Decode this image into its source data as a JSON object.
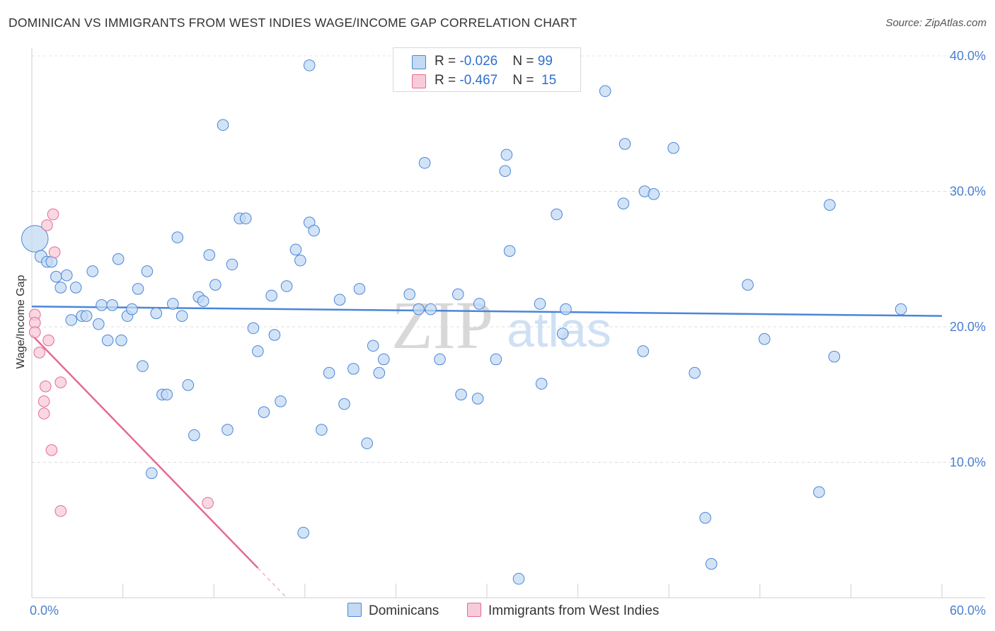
{
  "header": {
    "title": "DOMINICAN VS IMMIGRANTS FROM WEST INDIES WAGE/INCOME GAP CORRELATION CHART",
    "source": "Source: ZipAtlas.com"
  },
  "watermark": {
    "zip": "ZIP",
    "atlas": "atlas"
  },
  "legend": {
    "rows": [
      {
        "r_label": "R = ",
        "r_value": "-0.026",
        "n_label": "N = ",
        "n_value": "99",
        "color": "#aac8f0"
      },
      {
        "r_label": "R = ",
        "r_value": "-0.467",
        "n_label": "N = ",
        "n_value": "15",
        "color": "#f4b8c8"
      }
    ]
  },
  "bottom_legend": {
    "series1": "Dominicans",
    "series2": "Immigrants from West Indies"
  },
  "chart_data": {
    "type": "scatter",
    "title": "DOMINICAN VS IMMIGRANTS FROM WEST INDIES WAGE/INCOME GAP CORRELATION CHART",
    "xlabel": "",
    "ylabel": "Wage/Income Gap",
    "xlim": [
      0,
      60
    ],
    "ylim": [
      0,
      40
    ],
    "x_tick_labels": [
      "0.0%",
      "60.0%"
    ],
    "y_ticks": [
      10,
      20,
      30,
      40
    ],
    "y_tick_labels": [
      "10.0%",
      "20.0%",
      "30.0%",
      "40.0%"
    ],
    "grid": true,
    "colors": {
      "blue": "#4a86d8",
      "blue_fill": "#c4d9f3",
      "pink": "#e46b94",
      "pink_fill": "#f7cbd8",
      "label": "#4a7fd0"
    },
    "series": [
      {
        "name": "Dominicans",
        "R": -0.026,
        "N": 99,
        "trend": {
          "x": [
            0,
            60
          ],
          "y": [
            21.5,
            20.8
          ]
        },
        "points": [
          [
            0.2,
            26.5,
            24
          ],
          [
            0.6,
            25.2,
            11
          ],
          [
            1.0,
            24.8,
            10
          ],
          [
            1.3,
            24.8,
            10
          ],
          [
            1.6,
            23.7,
            10
          ],
          [
            1.9,
            22.9,
            10
          ],
          [
            2.3,
            23.8,
            10
          ],
          [
            2.9,
            22.9,
            10
          ],
          [
            2.6,
            20.5,
            10
          ],
          [
            3.3,
            20.8,
            10
          ],
          [
            3.6,
            20.8,
            10
          ],
          [
            4.0,
            24.1,
            10
          ],
          [
            4.4,
            20.2,
            10
          ],
          [
            4.6,
            21.6,
            10
          ],
          [
            5.0,
            19.0,
            10
          ],
          [
            5.3,
            21.6,
            10
          ],
          [
            5.7,
            25.0,
            10
          ],
          [
            5.9,
            19.0,
            10
          ],
          [
            6.3,
            20.8,
            10
          ],
          [
            6.6,
            21.3,
            10
          ],
          [
            7.0,
            22.8,
            10
          ],
          [
            7.3,
            17.1,
            10
          ],
          [
            7.6,
            24.1,
            10
          ],
          [
            7.9,
            9.2,
            10
          ],
          [
            8.2,
            21.0,
            10
          ],
          [
            8.6,
            15.0,
            10
          ],
          [
            8.9,
            15.0,
            10
          ],
          [
            9.3,
            21.7,
            10
          ],
          [
            9.6,
            26.6,
            10
          ],
          [
            9.9,
            20.8,
            10
          ],
          [
            10.3,
            15.7,
            10
          ],
          [
            10.7,
            12.0,
            10
          ],
          [
            11.0,
            22.2,
            10
          ],
          [
            11.3,
            21.9,
            10
          ],
          [
            11.7,
            25.3,
            10
          ],
          [
            12.1,
            23.1,
            10
          ],
          [
            12.6,
            34.9,
            10
          ],
          [
            12.9,
            12.4,
            10
          ],
          [
            13.2,
            24.6,
            10
          ],
          [
            13.7,
            28.0,
            10
          ],
          [
            14.1,
            28.0,
            10
          ],
          [
            14.6,
            19.9,
            10
          ],
          [
            14.9,
            18.2,
            10
          ],
          [
            15.3,
            13.7,
            10
          ],
          [
            15.8,
            22.3,
            10
          ],
          [
            16.0,
            19.4,
            10
          ],
          [
            16.4,
            14.5,
            10
          ],
          [
            16.8,
            23.0,
            10
          ],
          [
            17.4,
            25.7,
            10
          ],
          [
            17.7,
            24.9,
            10
          ],
          [
            17.9,
            4.8,
            10
          ],
          [
            18.3,
            27.7,
            10
          ],
          [
            18.6,
            27.1,
            10
          ],
          [
            18.3,
            39.3,
            10
          ],
          [
            19.1,
            12.4,
            10
          ],
          [
            19.6,
            16.6,
            10
          ],
          [
            20.3,
            22.0,
            10
          ],
          [
            20.6,
            14.3,
            10
          ],
          [
            21.2,
            16.9,
            10
          ],
          [
            21.6,
            22.8,
            10
          ],
          [
            22.1,
            11.4,
            10
          ],
          [
            22.5,
            18.6,
            10
          ],
          [
            22.9,
            16.6,
            10
          ],
          [
            23.2,
            17.6,
            10
          ],
          [
            24.9,
            22.4,
            10
          ],
          [
            25.5,
            21.3,
            10
          ],
          [
            26.3,
            21.3,
            10
          ],
          [
            25.9,
            32.1,
            10
          ],
          [
            26.9,
            17.6,
            10
          ],
          [
            28.1,
            22.4,
            10
          ],
          [
            28.3,
            15.0,
            10
          ],
          [
            29.4,
            14.7,
            10
          ],
          [
            29.5,
            21.7,
            10
          ],
          [
            30.6,
            17.6,
            10
          ],
          [
            31.2,
            31.5,
            10
          ],
          [
            31.3,
            32.7,
            10
          ],
          [
            31.5,
            25.6,
            10
          ],
          [
            32.1,
            1.4,
            10
          ],
          [
            33.5,
            21.7,
            10
          ],
          [
            33.6,
            15.8,
            10
          ],
          [
            34.6,
            28.3,
            10
          ],
          [
            35.0,
            19.5,
            10
          ],
          [
            35.2,
            21.3,
            10
          ],
          [
            37.8,
            37.4,
            10
          ],
          [
            39.0,
            29.1,
            10
          ],
          [
            39.1,
            33.5,
            10
          ],
          [
            40.3,
            18.2,
            10
          ],
          [
            40.4,
            30.0,
            10
          ],
          [
            41.0,
            29.8,
            10
          ],
          [
            42.3,
            33.2,
            10
          ],
          [
            43.7,
            16.6,
            10
          ],
          [
            44.4,
            5.9,
            10
          ],
          [
            44.8,
            2.5,
            10
          ],
          [
            47.2,
            23.1,
            10
          ],
          [
            48.3,
            19.1,
            10
          ],
          [
            51.9,
            7.8,
            10
          ],
          [
            52.6,
            29.0,
            10
          ],
          [
            52.9,
            17.8,
            10
          ],
          [
            57.3,
            21.3,
            10
          ]
        ]
      },
      {
        "name": "Immigrants from West Indies",
        "R": -0.467,
        "N": 15,
        "trend": {
          "x": [
            0,
            14.9
          ],
          "y": [
            19.4,
            2.2
          ]
        },
        "trend_dashed": {
          "x": [
            14.9,
            16.8
          ],
          "y": [
            2.2,
            0
          ]
        },
        "points": [
          [
            0.2,
            20.9,
            10
          ],
          [
            0.2,
            20.3,
            10
          ],
          [
            0.2,
            19.6,
            10
          ],
          [
            0.5,
            18.1,
            10
          ],
          [
            0.8,
            14.5,
            10
          ],
          [
            0.8,
            13.6,
            10
          ],
          [
            0.9,
            15.6,
            10
          ],
          [
            1.0,
            27.5,
            10
          ],
          [
            1.1,
            19.0,
            10
          ],
          [
            1.3,
            10.9,
            10
          ],
          [
            1.4,
            28.3,
            10
          ],
          [
            1.5,
            25.5,
            10
          ],
          [
            1.9,
            15.9,
            10
          ],
          [
            1.9,
            6.4,
            10
          ],
          [
            11.6,
            7.0,
            10
          ]
        ]
      }
    ]
  }
}
